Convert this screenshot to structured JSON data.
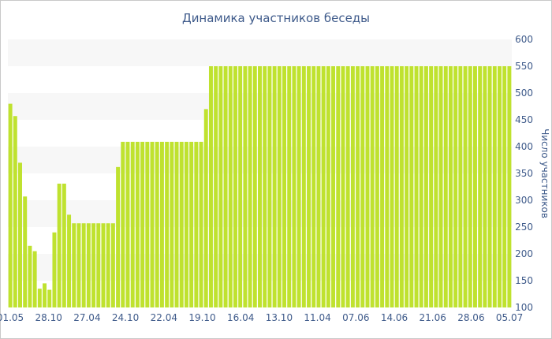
{
  "chart_data": {
    "type": "bar",
    "title": "Динамика участников беседы",
    "xlabel": "",
    "ylabel": "Число участников",
    "ylim": [
      100,
      600
    ],
    "yticks": [
      100,
      150,
      200,
      250,
      300,
      350,
      400,
      450,
      500,
      550,
      600
    ],
    "xtick_labels": [
      "01.05",
      "28.10",
      "27.04",
      "24.10",
      "22.04",
      "19.10",
      "16.04",
      "13.10",
      "11.04",
      "07.06",
      "14.06",
      "21.06",
      "28.06",
      "05.07"
    ],
    "grid": "horizontal-bands",
    "bar_color": "#bfe22f",
    "band_color": "#f7f7f7",
    "text_color": "#3e5a8a",
    "series": [
      {
        "values": [
          480,
          457,
          370,
          307,
          215,
          205,
          135,
          145,
          133,
          240,
          331,
          331,
          273,
          257,
          257,
          257,
          257,
          257,
          257,
          257,
          257,
          257,
          362,
          409,
          409,
          409,
          409,
          409,
          409,
          409,
          409,
          409,
          409,
          409,
          409,
          409,
          409,
          409,
          409,
          409,
          470,
          550,
          550,
          550,
          550,
          550,
          550,
          550,
          550,
          550,
          550,
          550,
          550,
          550,
          550,
          550,
          550,
          550,
          550,
          550,
          550,
          550,
          550,
          550,
          550,
          550,
          550,
          550,
          550,
          550,
          550,
          550,
          550,
          550,
          550,
          550,
          550,
          550,
          550,
          550,
          550,
          550,
          550,
          550,
          550,
          550,
          550,
          550,
          550,
          550,
          550,
          550,
          550,
          550,
          550,
          550,
          550,
          550,
          550,
          550,
          550,
          550,
          550
        ]
      }
    ]
  }
}
